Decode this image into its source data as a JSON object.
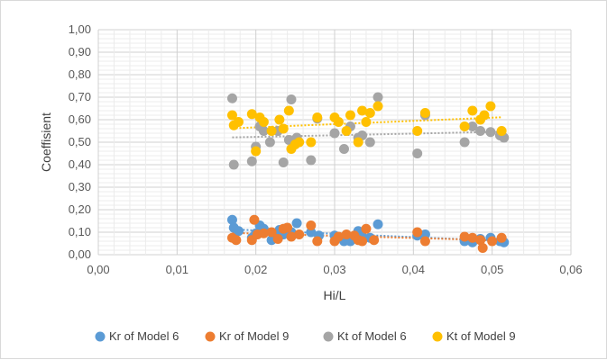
{
  "chart_data": {
    "type": "scatter",
    "title": "",
    "xlabel": "Hi/L",
    "ylabel": "Coeffisient",
    "xlim": [
      0,
      0.06
    ],
    "ylim": [
      0,
      1
    ],
    "x_ticks": [
      "0,00",
      "0,01",
      "0,02",
      "0,03",
      "0,04",
      "0,05",
      "0,06"
    ],
    "y_ticks": [
      "0,00",
      "0,10",
      "0,20",
      "0,30",
      "0,40",
      "0,50",
      "0,60",
      "0,70",
      "0,80",
      "0,90",
      "1,00"
    ],
    "grid": {
      "major": true,
      "minor": true
    },
    "legend_position": "bottom",
    "trendlines": "linear, dotted",
    "series": [
      {
        "name": "Kr of Model 6",
        "color": "#5b9bd5",
        "points": [
          [
            0.017,
            0.155
          ],
          [
            0.0172,
            0.12
          ],
          [
            0.0178,
            0.105
          ],
          [
            0.0195,
            0.075
          ],
          [
            0.02,
            0.095
          ],
          [
            0.0205,
            0.13
          ],
          [
            0.021,
            0.115
          ],
          [
            0.022,
            0.065
          ],
          [
            0.023,
            0.11
          ],
          [
            0.0235,
            0.09
          ],
          [
            0.0245,
            0.1
          ],
          [
            0.0252,
            0.14
          ],
          [
            0.027,
            0.1
          ],
          [
            0.028,
            0.085
          ],
          [
            0.03,
            0.085
          ],
          [
            0.0312,
            0.06
          ],
          [
            0.032,
            0.06
          ],
          [
            0.033,
            0.105
          ],
          [
            0.0335,
            0.08
          ],
          [
            0.0345,
            0.075
          ],
          [
            0.0355,
            0.135
          ],
          [
            0.0405,
            0.085
          ],
          [
            0.0415,
            0.09
          ],
          [
            0.0465,
            0.06
          ],
          [
            0.0475,
            0.055
          ],
          [
            0.0485,
            0.07
          ],
          [
            0.0498,
            0.075
          ],
          [
            0.051,
            0.06
          ],
          [
            0.0515,
            0.055
          ]
        ]
      },
      {
        "name": "Kr of Model 9",
        "color": "#ed7d31",
        "points": [
          [
            0.017,
            0.075
          ],
          [
            0.0175,
            0.065
          ],
          [
            0.0195,
            0.065
          ],
          [
            0.0198,
            0.155
          ],
          [
            0.0202,
            0.09
          ],
          [
            0.021,
            0.095
          ],
          [
            0.022,
            0.1
          ],
          [
            0.0228,
            0.07
          ],
          [
            0.0235,
            0.115
          ],
          [
            0.024,
            0.12
          ],
          [
            0.0245,
            0.08
          ],
          [
            0.0255,
            0.09
          ],
          [
            0.027,
            0.13
          ],
          [
            0.0278,
            0.06
          ],
          [
            0.03,
            0.06
          ],
          [
            0.0305,
            0.08
          ],
          [
            0.0315,
            0.09
          ],
          [
            0.0325,
            0.085
          ],
          [
            0.033,
            0.065
          ],
          [
            0.0335,
            0.06
          ],
          [
            0.034,
            0.115
          ],
          [
            0.035,
            0.065
          ],
          [
            0.0405,
            0.1
          ],
          [
            0.0415,
            0.06
          ],
          [
            0.0465,
            0.08
          ],
          [
            0.0475,
            0.075
          ],
          [
            0.0485,
            0.065
          ],
          [
            0.0488,
            0.03
          ],
          [
            0.05,
            0.06
          ],
          [
            0.0512,
            0.075
          ]
        ]
      },
      {
        "name": "Kt of Model 6",
        "color": "#a5a5a5",
        "points": [
          [
            0.017,
            0.695
          ],
          [
            0.0172,
            0.4
          ],
          [
            0.0195,
            0.415
          ],
          [
            0.02,
            0.48
          ],
          [
            0.0205,
            0.57
          ],
          [
            0.021,
            0.55
          ],
          [
            0.0218,
            0.5
          ],
          [
            0.0228,
            0.55
          ],
          [
            0.0235,
            0.41
          ],
          [
            0.0242,
            0.51
          ],
          [
            0.0245,
            0.69
          ],
          [
            0.0252,
            0.52
          ],
          [
            0.027,
            0.42
          ],
          [
            0.0278,
            0.605
          ],
          [
            0.03,
            0.54
          ],
          [
            0.0312,
            0.47
          ],
          [
            0.032,
            0.57
          ],
          [
            0.033,
            0.52
          ],
          [
            0.0335,
            0.53
          ],
          [
            0.0345,
            0.5
          ],
          [
            0.0355,
            0.7
          ],
          [
            0.0405,
            0.45
          ],
          [
            0.0415,
            0.62
          ],
          [
            0.0465,
            0.5
          ],
          [
            0.0475,
            0.57
          ],
          [
            0.0485,
            0.55
          ],
          [
            0.0498,
            0.545
          ],
          [
            0.051,
            0.53
          ],
          [
            0.0515,
            0.52
          ]
        ]
      },
      {
        "name": "Kt of Model 9",
        "color": "#ffc000",
        "points": [
          [
            0.017,
            0.62
          ],
          [
            0.0172,
            0.575
          ],
          [
            0.0178,
            0.59
          ],
          [
            0.0195,
            0.625
          ],
          [
            0.02,
            0.46
          ],
          [
            0.0205,
            0.61
          ],
          [
            0.021,
            0.59
          ],
          [
            0.022,
            0.55
          ],
          [
            0.023,
            0.6
          ],
          [
            0.0235,
            0.56
          ],
          [
            0.0242,
            0.64
          ],
          [
            0.0245,
            0.47
          ],
          [
            0.025,
            0.49
          ],
          [
            0.0255,
            0.5
          ],
          [
            0.027,
            0.5
          ],
          [
            0.0278,
            0.61
          ],
          [
            0.03,
            0.61
          ],
          [
            0.0305,
            0.59
          ],
          [
            0.0315,
            0.55
          ],
          [
            0.032,
            0.62
          ],
          [
            0.033,
            0.5
          ],
          [
            0.0335,
            0.64
          ],
          [
            0.034,
            0.59
          ],
          [
            0.0345,
            0.63
          ],
          [
            0.0355,
            0.66
          ],
          [
            0.0405,
            0.55
          ],
          [
            0.0415,
            0.63
          ],
          [
            0.0465,
            0.57
          ],
          [
            0.0475,
            0.64
          ],
          [
            0.0485,
            0.6
          ],
          [
            0.049,
            0.62
          ],
          [
            0.0498,
            0.66
          ],
          [
            0.0512,
            0.55
          ]
        ]
      }
    ]
  }
}
